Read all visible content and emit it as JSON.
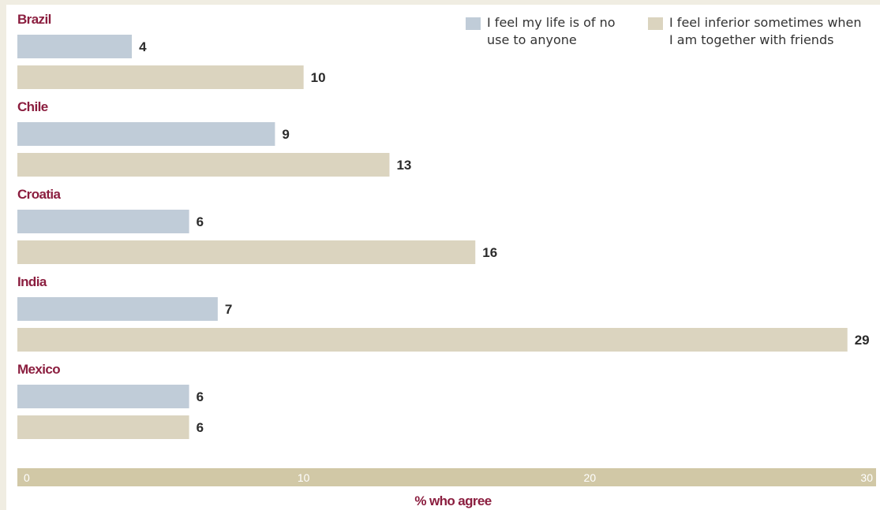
{
  "chart_data": {
    "type": "bar",
    "orientation": "horizontal",
    "categories": [
      "Brazil",
      "Chile",
      "Croatia",
      "India",
      "Mexico"
    ],
    "series": [
      {
        "name": "I feel my life is of no use to anyone",
        "values": [
          4,
          9,
          6,
          7,
          6
        ],
        "color": "#c0ccd8"
      },
      {
        "name": "I feel inferior sometimes when I am together with friends",
        "values": [
          10,
          13,
          16,
          29,
          6
        ],
        "color": "#dbd4bf"
      }
    ],
    "xlabel": "% who agree",
    "xlim": [
      0,
      30
    ],
    "xticks": [
      0,
      10,
      20,
      30
    ],
    "title": "",
    "legend_position": "top-right",
    "grid": false
  },
  "legend": {
    "items": [
      {
        "text": "I feel my life is of no use to anyone",
        "line1": "I feel my life is of no",
        "line2": "use to anyone"
      },
      {
        "text": "I feel inferior sometimes when I am together with friends",
        "line1": "I feel inferior sometimes when",
        "line2": "I am together with friends"
      }
    ]
  },
  "colors": {
    "category_label": "#8b1e3f",
    "value_label": "#2b2b2b",
    "axis_band": "#d1c8a6",
    "tick_label": "#ffffff",
    "background": "#f0ede2"
  }
}
